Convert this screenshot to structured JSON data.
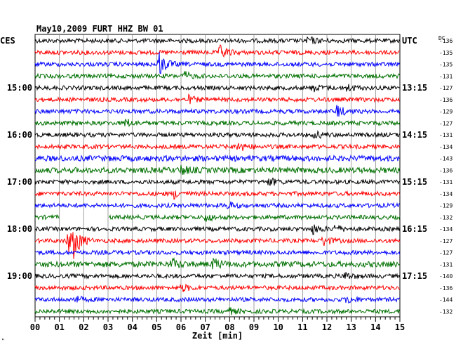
{
  "header": {
    "title": "May10,2009   FURT HHZ BW 01",
    "left_zone": "CES",
    "right_zone": "UTC",
    "dc_label": "DC"
  },
  "footer": {
    "xlabel": "Zeit [min]",
    "note": "\""
  },
  "chart_data": {
    "type": "line",
    "title": "May10,2009   FURT HHZ BW 01",
    "xlabel": "Zeit [min]",
    "ylabel": "",
    "x_range": [
      0,
      15
    ],
    "x_tick_labels": [
      "00",
      "01",
      "02",
      "03",
      "04",
      "05",
      "06",
      "07",
      "08",
      "09",
      "10",
      "11",
      "12",
      "13",
      "14",
      "15"
    ],
    "minor_ticks_per_minute": 5,
    "grid": true,
    "color_cycle": [
      "#000000",
      "#ff0000",
      "#0000ff",
      "#007000"
    ],
    "left_time_labels": [
      {
        "row": 4,
        "text": "15:00"
      },
      {
        "row": 8,
        "text": "16:00"
      },
      {
        "row": 12,
        "text": "17:00"
      },
      {
        "row": 16,
        "text": "18:00"
      },
      {
        "row": 20,
        "text": "19:00"
      }
    ],
    "right_time_labels": [
      {
        "row": 0,
        "text": "UTC"
      },
      {
        "row": 4,
        "text": "13:15"
      },
      {
        "row": 8,
        "text": "14:15"
      },
      {
        "row": 12,
        "text": "15:15"
      },
      {
        "row": 16,
        "text": "16:15"
      },
      {
        "row": 20,
        "text": "17:15"
      }
    ],
    "dc_offsets": [
      "-136",
      "-135",
      "-135",
      "-131",
      "-127",
      "-136",
      "-129",
      "-127",
      "-131",
      "-134",
      "-143",
      "-136",
      "-131",
      "-134",
      "-129",
      "-132",
      "-134",
      "-127",
      "-127",
      "-131",
      "-140",
      "-136",
      "-144",
      "-132"
    ],
    "traces": [
      {
        "color": "#000000",
        "amplitude": 3,
        "events": [
          {
            "minute": 11.2,
            "amp": 6
          }
        ]
      },
      {
        "color": "#ff0000",
        "amplitude": 3,
        "events": [
          {
            "minute": 7.6,
            "amp": 10
          }
        ]
      },
      {
        "color": "#0000ff",
        "amplitude": 3,
        "events": [
          {
            "minute": 5.05,
            "amp": 20
          }
        ]
      },
      {
        "color": "#007000",
        "amplitude": 3,
        "events": [
          {
            "minute": 6.1,
            "amp": 6
          }
        ]
      },
      {
        "color": "#000000",
        "amplitude": 3,
        "events": [
          {
            "minute": 11.4,
            "amp": 5
          },
          {
            "minute": 12.8,
            "amp": 5
          }
        ]
      },
      {
        "color": "#ff0000",
        "amplitude": 3,
        "events": [
          {
            "minute": 6.3,
            "amp": 5
          }
        ]
      },
      {
        "color": "#0000ff",
        "amplitude": 3,
        "events": [
          {
            "minute": 12.4,
            "amp": 9
          }
        ]
      },
      {
        "color": "#007000",
        "amplitude": 3,
        "events": [
          {
            "minute": 3.7,
            "amp": 6
          }
        ]
      },
      {
        "color": "#000000",
        "amplitude": 3,
        "events": [
          {
            "minute": 11.5,
            "amp": 5
          }
        ]
      },
      {
        "color": "#ff0000",
        "amplitude": 3,
        "events": [
          {
            "minute": 8.3,
            "amp": 8
          }
        ]
      },
      {
        "color": "#0000ff",
        "amplitude": 4,
        "events": []
      },
      {
        "color": "#007000",
        "amplitude": 4,
        "events": [
          {
            "minute": 6.0,
            "amp": 6
          }
        ]
      },
      {
        "color": "#000000",
        "amplitude": 3,
        "events": [
          {
            "minute": 9.6,
            "amp": 6
          }
        ]
      },
      {
        "color": "#ff0000",
        "amplitude": 3,
        "events": [
          {
            "minute": 5.7,
            "amp": 6
          }
        ]
      },
      {
        "color": "#0000ff",
        "amplitude": 3,
        "events": [
          {
            "minute": 7.9,
            "amp": 5
          }
        ]
      },
      {
        "color": "#007000",
        "amplitude": 3,
        "events": [
          {
            "minute": 7.0,
            "amp": 6
          }
        ],
        "gap": [
          1.0,
          3.0
        ]
      },
      {
        "color": "#000000",
        "amplitude": 3,
        "events": [
          {
            "minute": 11.4,
            "amp": 7
          },
          {
            "minute": 12.3,
            "amp": 5
          }
        ]
      },
      {
        "color": "#ff0000",
        "amplitude": 3,
        "events": [
          {
            "minute": 1.3,
            "amp": 18
          },
          {
            "minute": 1.55,
            "amp": 22
          },
          {
            "minute": 11.8,
            "amp": 8
          }
        ]
      },
      {
        "color": "#0000ff",
        "amplitude": 3,
        "events": []
      },
      {
        "color": "#007000",
        "amplitude": 4,
        "events": [
          {
            "minute": 5.6,
            "amp": 7
          },
          {
            "minute": 7.3,
            "amp": 9
          }
        ]
      },
      {
        "color": "#000000",
        "amplitude": 3,
        "events": [
          {
            "minute": 12.7,
            "amp": 6
          }
        ]
      },
      {
        "color": "#ff0000",
        "amplitude": 3,
        "events": [
          {
            "minute": 6.0,
            "amp": 5
          }
        ]
      },
      {
        "color": "#0000ff",
        "amplitude": 3,
        "events": [
          {
            "minute": 1.6,
            "amp": 5
          },
          {
            "minute": 12.8,
            "amp": 5
          }
        ]
      },
      {
        "color": "#007000",
        "amplitude": 3,
        "events": [
          {
            "minute": 7.9,
            "amp": 5
          }
        ]
      }
    ]
  }
}
